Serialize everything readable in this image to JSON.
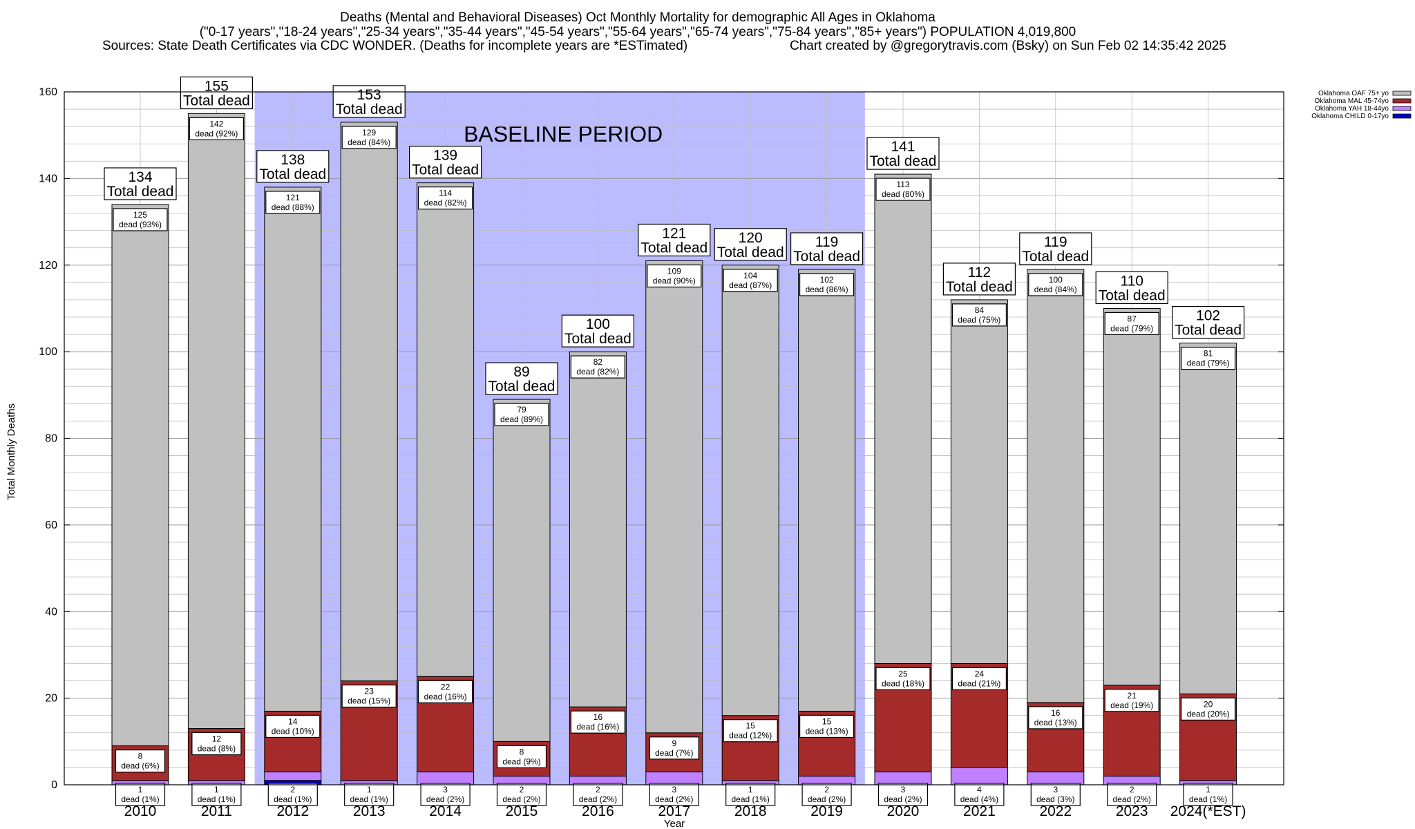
{
  "chart_data": {
    "type": "bar",
    "stacked": true,
    "title_lines": [
      "Deaths (Mental and Behavioral Diseases) Oct Monthly Mortality for demographic All Ages in Oklahoma",
      "(\"0-17 years\",\"18-24 years\",\"25-34 years\",\"35-44 years\",\"45-54 years\",\"55-64 years\",\"65-74 years\",\"75-84 years\",\"85+ years\") POPULATION 4,019,800",
      "Sources: State Death Certificates via CDC WONDER. (Deaths for incomplete years are *ESTimated)",
      "Chart created by @gregorytravis.com (Bsky) on Sun Feb 02 14:35:42 2025"
    ],
    "xlabel": "Year",
    "ylabel": "Total Monthly Deaths",
    "ylim": [
      0,
      160
    ],
    "yticks": [
      0,
      20,
      40,
      60,
      80,
      100,
      120,
      140,
      160
    ],
    "grid": true,
    "legend_position": "top-right",
    "categories": [
      "2010",
      "2011",
      "2012",
      "2013",
      "2014",
      "2015",
      "2016",
      "2017",
      "2018",
      "2019",
      "2020",
      "2021",
      "2022",
      "2023",
      "2024(*EST)"
    ],
    "series": [
      {
        "name": "Oklahoma CHILD 0-17yo",
        "color": "#0000cc",
        "values": [
          0,
          0,
          1,
          0,
          0,
          0,
          0,
          0,
          0,
          0,
          0,
          0,
          0,
          0,
          0
        ]
      },
      {
        "name": "Oklahoma YAH 18-44yo",
        "color": "#c080ff",
        "values": [
          1,
          1,
          2,
          1,
          3,
          2,
          2,
          3,
          1,
          2,
          3,
          4,
          3,
          2,
          1
        ]
      },
      {
        "name": "Oklahoma MAL 45-74yo",
        "color": "#a52a2a",
        "values": [
          8,
          12,
          14,
          23,
          22,
          8,
          16,
          9,
          15,
          15,
          25,
          24,
          16,
          21,
          20
        ]
      },
      {
        "name": "Oklahoma OAF 75+ yo",
        "color": "#c0c0c0",
        "values": [
          125,
          142,
          121,
          129,
          114,
          79,
          82,
          109,
          104,
          102,
          113,
          84,
          100,
          87,
          81
        ]
      }
    ],
    "legend_order": [
      "Oklahoma OAF 75+ yo",
      "Oklahoma MAL 45-74yo",
      "Oklahoma YAH 18-44yo",
      "Oklahoma CHILD 0-17yo"
    ],
    "totals": [
      134,
      155,
      138,
      153,
      139,
      89,
      100,
      121,
      120,
      119,
      141,
      112,
      119,
      110,
      102
    ],
    "percent_labels": {
      "Oklahoma YAH 18-44yo": [
        "(1%)",
        "(1%)",
        "(1%)",
        "(1%)",
        "(2%)",
        "(2%)",
        "(2%)",
        "(2%)",
        "(1%)",
        "(2%)",
        "(2%)",
        "(4%)",
        "(3%)",
        "(2%)",
        "(1%)"
      ],
      "Oklahoma MAL 45-74yo": [
        "(6%)",
        "(8%)",
        "(10%)",
        "(15%)",
        "(16%)",
        "(9%)",
        "(16%)",
        "(7%)",
        "(12%)",
        "(13%)",
        "(18%)",
        "(21%)",
        "(13%)",
        "(19%)",
        "(20%)"
      ],
      "Oklahoma OAF 75+ yo": [
        "(93%)",
        "(92%)",
        "(88%)",
        "(84%)",
        "(82%)",
        "(89%)",
        "(82%)",
        "(90%)",
        "(87%)",
        "(86%)",
        "(80%)",
        "(75%)",
        "(84%)",
        "(79%)",
        "(79%)"
      ]
    },
    "dead_word": "dead",
    "total_caption": "Total dead",
    "baseline": {
      "label": "BASELINE PERIOD",
      "from": "2012",
      "to": "2019",
      "color": "#bbbbff"
    }
  }
}
